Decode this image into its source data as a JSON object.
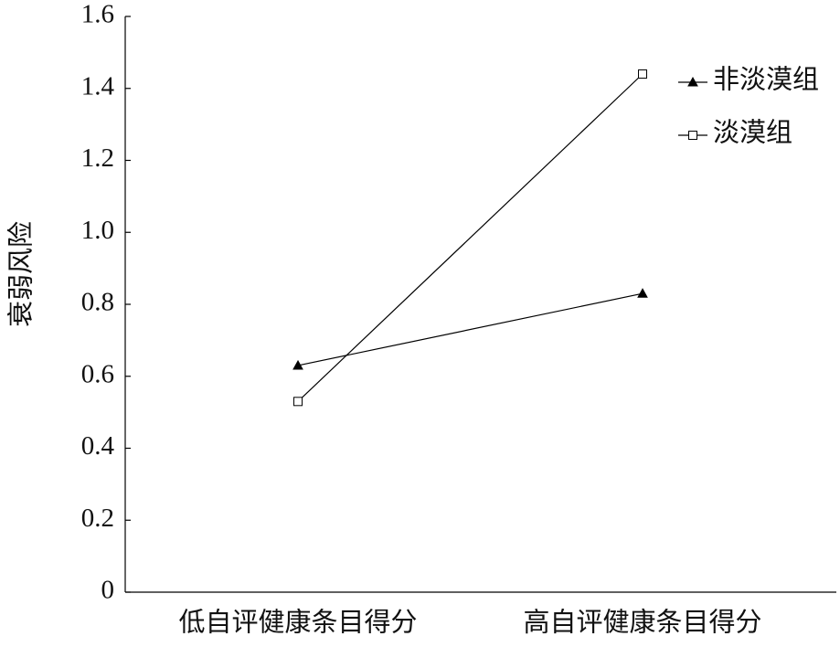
{
  "chart_data": {
    "type": "line",
    "y_label": "衰弱风险",
    "categories": [
      "低自评健康条目得分",
      "高自评健康条目得分"
    ],
    "series": [
      {
        "name": "非淡漠组",
        "color": "#000000",
        "marker": "triangle",
        "values": [
          0.63,
          0.83
        ]
      },
      {
        "name": "淡漠组",
        "color": "#000000",
        "marker": "square",
        "values": [
          0.53,
          1.44
        ]
      }
    ],
    "ylim": [
      0,
      1.6
    ],
    "yticks": [
      0,
      0.2,
      0.4,
      0.6,
      0.8,
      {
        "value": 1,
        "label": "1.0"
      },
      1.2,
      1.4,
      1.6
    ],
    "legend": "upper right"
  }
}
